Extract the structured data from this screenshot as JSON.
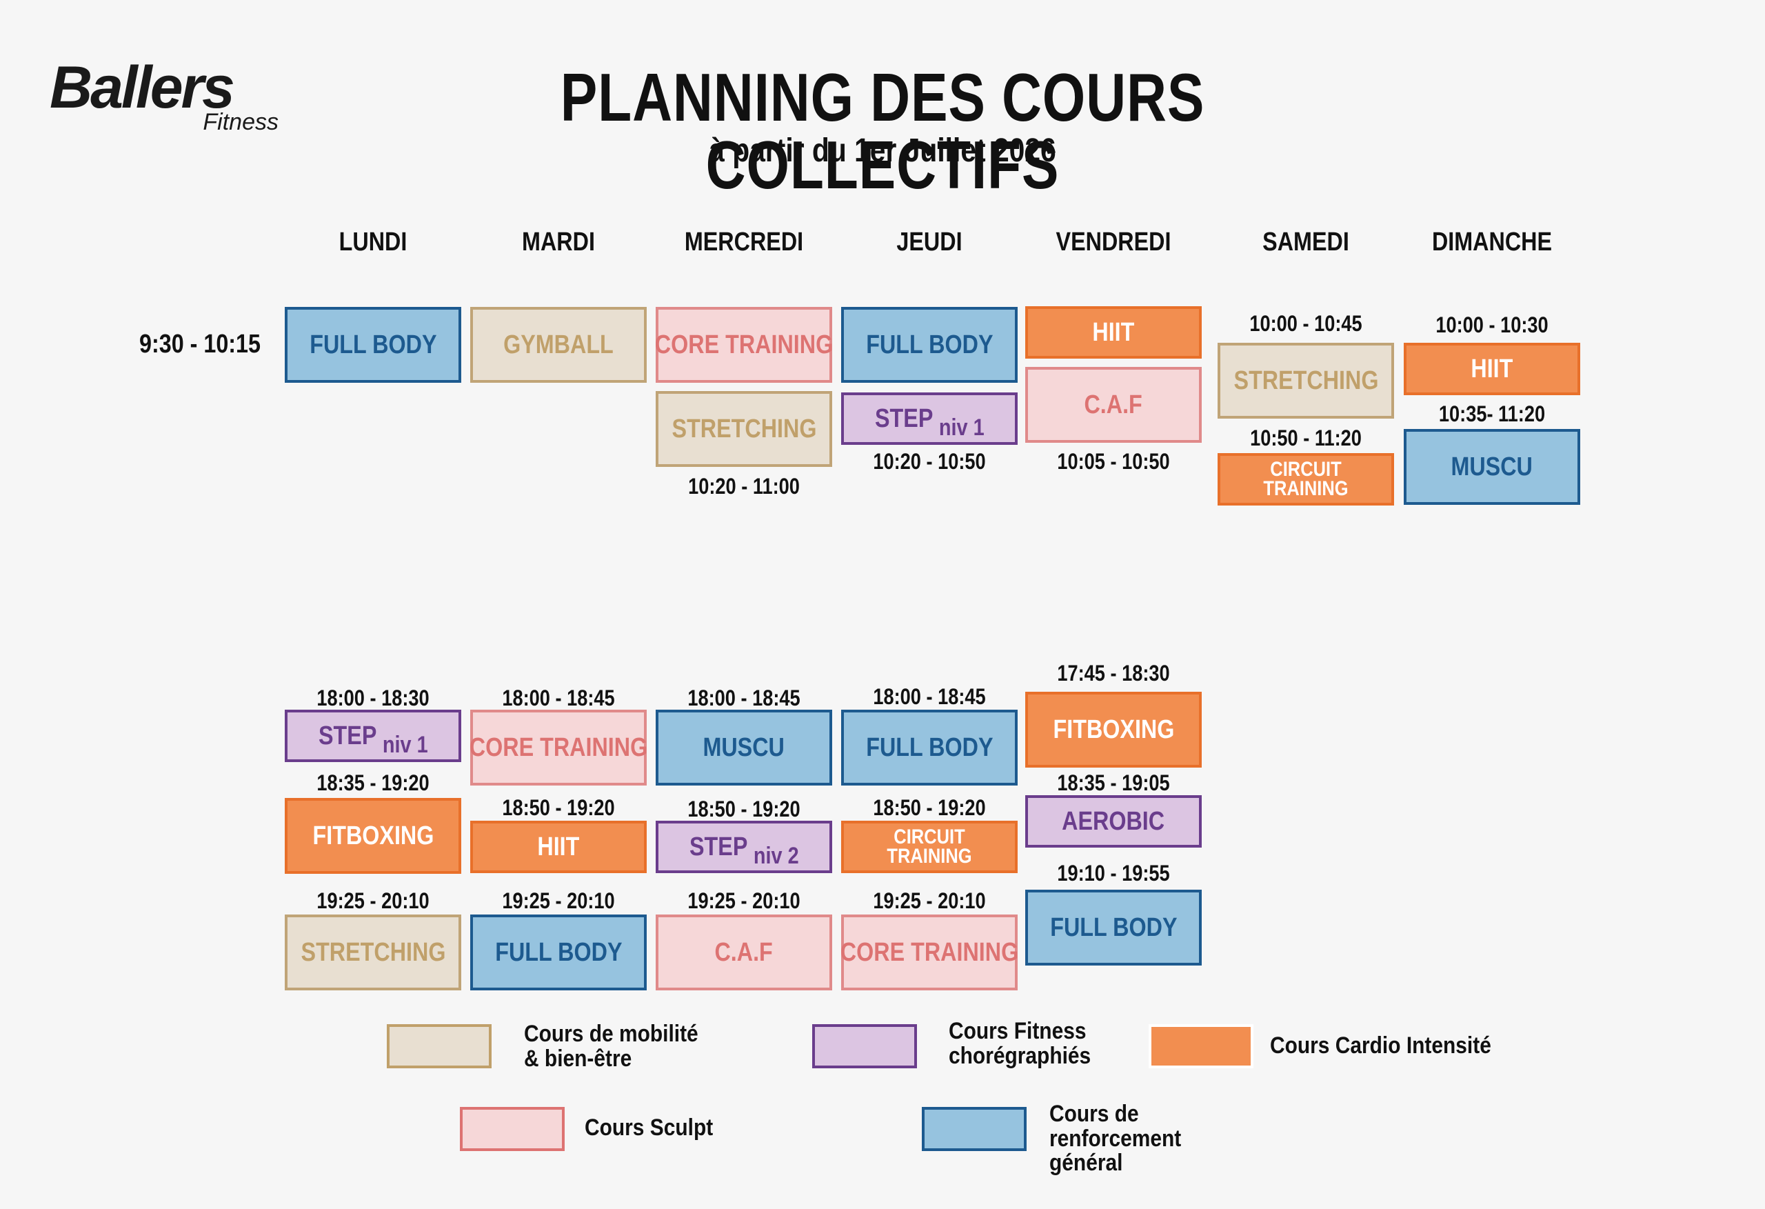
{
  "header": {
    "brand": "Ballers",
    "brand_sub": "Fitness",
    "title": "PLANNING DES COURS COLLECTIFS",
    "subtitle": "à partir du 1er Juillet 2026"
  },
  "days": [
    "LUNDI",
    "MARDI",
    "MERCREDI",
    "JEUDI",
    "VENDREDI",
    "SAMEDI",
    "DIMANCHE"
  ],
  "morning_time": "9:30 - 10:15",
  "courses": {
    "lundi_am": "FULL BODY",
    "mardi_am": "GYMBALL",
    "mercredi_am1": "CORE TRAINING",
    "mercredi_am2": "STRETCHING",
    "mercredi_am2_time": "10:20 - 11:00",
    "jeudi_am1": "FULL BODY",
    "jeudi_am2": "STEP",
    "jeudi_am2_niv": "niv 1",
    "jeudi_am2_time": "10:20 - 10:50",
    "vendredi_am1": "HIIT",
    "vendredi_am2": "C.A.F",
    "vendredi_am2_time": "10:05 - 10:50",
    "samedi_am1_time": "10:00 - 10:45",
    "samedi_am1": "STRETCHING",
    "samedi_am2_time": "10:50 - 11:20",
    "samedi_am2": "CIRCUIT TRAINING",
    "dimanche_am1_time": "10:00 - 10:30",
    "dimanche_am1": "HIIT",
    "dimanche_am2_time": "10:35- 11:20",
    "dimanche_am2": "MUSCU",
    "lundi_pm1_time": "18:00 - 18:30",
    "lundi_pm1": "STEP",
    "lundi_pm1_niv": "niv 1",
    "lundi_pm2_time": "18:35 - 19:20",
    "lundi_pm2": "FITBOXING",
    "lundi_pm3_time": "19:25 - 20:10",
    "lundi_pm3": "STRETCHING",
    "mardi_pm1_time": "18:00 - 18:45",
    "mardi_pm1": "CORE TRAINING",
    "mardi_pm2_time": "18:50 - 19:20",
    "mardi_pm2": "HIIT",
    "mardi_pm3_time": "19:25 - 20:10",
    "mardi_pm3": "FULL BODY",
    "mercredi_pm1_time": "18:00 - 18:45",
    "mercredi_pm1": "MUSCU",
    "mercredi_pm2_time": "18:50 - 19:20",
    "mercredi_pm2": "STEP",
    "mercredi_pm2_niv": "niv 2",
    "mercredi_pm3_time": "19:25 - 20:10",
    "mercredi_pm3": "C.A.F",
    "jeudi_pm1_time": "18:00 - 18:45",
    "jeudi_pm1": "FULL BODY",
    "jeudi_pm2_time": "18:50 - 19:20",
    "jeudi_pm2": "CIRCUIT TRAINING",
    "jeudi_pm3_time": "19:25 - 20:10",
    "jeudi_pm3": "CORE TRAINING",
    "vendredi_pm1_time": "17:45 - 18:30",
    "vendredi_pm1": "FITBOXING",
    "vendredi_pm2_time": "18:35 - 19:05",
    "vendredi_pm2": "AEROBIC",
    "vendredi_pm3_time": "19:10 - 19:55",
    "vendredi_pm3": "FULL BODY"
  },
  "legend": {
    "mobilite": "Cours de mobilité & bien-être",
    "fitness": "Cours Fitness chorégraphiés",
    "cardio": "Cours Cardio Intensité",
    "sculpt": "Cours Sculpt",
    "renforcement": "Cours de renforcement général"
  },
  "colors": {
    "beige": "#e8dfd1",
    "pink": "#f6d7d8",
    "blue": "#96c3df",
    "purple": "#dcc5e2",
    "orange": "#f28e50"
  }
}
